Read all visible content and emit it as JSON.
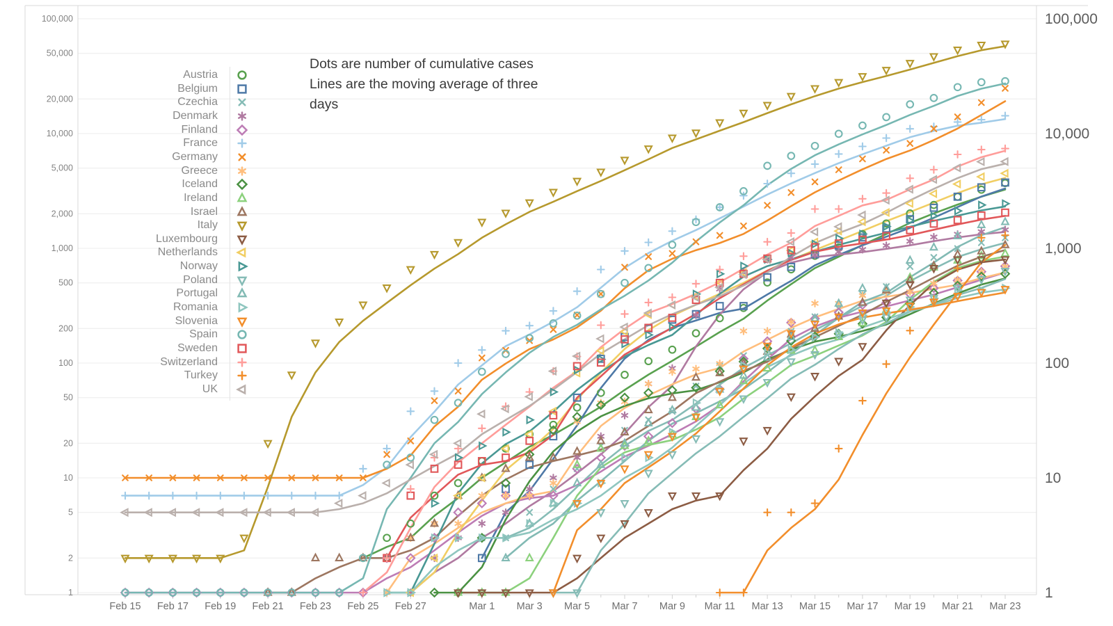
{
  "annotation": {
    "line1": "Dots are number of cumulative cases",
    "line2": "Lines are the moving average of three",
    "line3": "days"
  },
  "axes": {
    "left_tick_labels": [
      "100,000",
      "50,000",
      "20,000",
      "10,000",
      "5,000",
      "2,000",
      "1,000",
      "500",
      "200",
      "100",
      "50",
      "20",
      "10",
      "5",
      "2",
      "1"
    ],
    "left_tick_values": [
      100000,
      50000,
      20000,
      10000,
      5000,
      2000,
      1000,
      500,
      200,
      100,
      50,
      20,
      10,
      5,
      2,
      1
    ],
    "right_tick_labels": [
      "100,000",
      "10,000",
      "1,000",
      "100",
      "10",
      "1"
    ],
    "right_tick_values": [
      100000,
      10000,
      1000,
      100,
      10,
      1
    ],
    "x_tick_labels": [
      "Feb 15",
      "Feb 17",
      "Feb 19",
      "Feb 21",
      "Feb 23",
      "Feb 25",
      "Feb 27",
      "Mar 1",
      "Mar 3",
      "Mar 5",
      "Mar 7",
      "Mar 9",
      "Mar 11",
      "Mar 13",
      "Mar 15",
      "Mar 17",
      "Mar 19",
      "Mar 21",
      "Mar 23"
    ],
    "x_tick_day_indices": [
      0,
      2,
      4,
      6,
      8,
      10,
      12,
      15,
      17,
      19,
      21,
      23,
      25,
      27,
      29,
      31,
      33,
      35,
      37
    ],
    "y_scale": "log"
  },
  "colors": {
    "background": "#ffffff",
    "grid": "#ececec",
    "axis_line": "#d9d9d9",
    "tick_minor": "#cfcfcf",
    "label_left": "#848484",
    "label_bottom": "#6f6f6f",
    "label_right": "#5c5c5c",
    "legend_text": "#8a8a8a",
    "annotation_text": "#3a3a3a"
  },
  "chart_data": {
    "type": "scatter",
    "note_dots": "daily cumulative case counts",
    "note_lines": "3-day moving average of the dots",
    "ylim": [
      1,
      100000
    ],
    "legend_position": "upper-left inside plot",
    "grid": "on",
    "x": [
      "Feb 15",
      "Feb 16",
      "Feb 17",
      "Feb 18",
      "Feb 19",
      "Feb 20",
      "Feb 21",
      "Feb 22",
      "Feb 23",
      "Feb 24",
      "Feb 25",
      "Feb 26",
      "Feb 27",
      "Feb 28",
      "Feb 29",
      "Mar 1",
      "Mar 2",
      "Mar 3",
      "Mar 4",
      "Mar 5",
      "Mar 6",
      "Mar 7",
      "Mar 8",
      "Mar 9",
      "Mar 10",
      "Mar 11",
      "Mar 12",
      "Mar 13",
      "Mar 14",
      "Mar 15",
      "Mar 16",
      "Mar 17",
      "Mar 18",
      "Mar 19",
      "Mar 20",
      "Mar 21",
      "Mar 22",
      "Mar 23"
    ],
    "series": [
      {
        "name": "Austria",
        "marker": "circle",
        "color": "#59a14f",
        "values": [
          null,
          null,
          null,
          null,
          null,
          null,
          null,
          null,
          null,
          null,
          2,
          3,
          4,
          7,
          9,
          14,
          18,
          24,
          29,
          41,
          55,
          79,
          104,
          131,
          182,
          246,
          302,
          504,
          655,
          860,
          1018,
          1332,
          1646,
          2013,
          2388,
          2814,
          3244,
          3700
        ]
      },
      {
        "name": "Belgium",
        "marker": "square",
        "color": "#4e79a7",
        "values": [
          null,
          null,
          null,
          null,
          null,
          null,
          null,
          null,
          null,
          null,
          null,
          null,
          null,
          null,
          null,
          2,
          8,
          13,
          23,
          50,
          109,
          169,
          200,
          239,
          267,
          314,
          314,
          559,
          689,
          886,
          1058,
          1243,
          1486,
          1795,
          2257,
          2815,
          3401,
          3743
        ]
      },
      {
        "name": "Czechia",
        "marker": "x",
        "color": "#86bcb6",
        "values": [
          null,
          null,
          null,
          null,
          null,
          null,
          null,
          null,
          null,
          null,
          null,
          null,
          null,
          null,
          null,
          3,
          3,
          5,
          8,
          12,
          19,
          26,
          32,
          38,
          63,
          94,
          116,
          141,
          189,
          253,
          298,
          396,
          464,
          694,
          833,
          995,
          1120,
          1236
        ]
      },
      {
        "name": "Denmark",
        "marker": "asterisk",
        "color": "#b07aa1",
        "values": [
          null,
          null,
          null,
          null,
          null,
          null,
          null,
          null,
          null,
          null,
          null,
          null,
          1,
          2,
          3,
          4,
          5,
          8,
          10,
          15,
          23,
          35,
          66,
          90,
          262,
          442,
          615,
          801,
          836,
          875,
          932,
          977,
          1057,
          1151,
          1255,
          1326,
          1395,
          1450
        ]
      },
      {
        "name": "Finland",
        "marker": "diamond",
        "color": "#bd7cb5",
        "values": [
          1,
          1,
          1,
          1,
          1,
          1,
          1,
          1,
          1,
          1,
          1,
          2,
          2,
          3,
          5,
          6,
          7,
          7,
          7,
          12,
          15,
          19,
          23,
          30,
          40,
          59,
          109,
          155,
          225,
          244,
          277,
          321,
          336,
          400,
          450,
          523,
          626,
          700
        ]
      },
      {
        "name": "France",
        "marker": "plus",
        "color": "#a0cbe8",
        "values": [
          7,
          7,
          7,
          7,
          7,
          7,
          7,
          7,
          7,
          7,
          12,
          18,
          38,
          57,
          100,
          130,
          191,
          212,
          285,
          423,
          653,
          949,
          1126,
          1412,
          1784,
          2281,
          2876,
          3661,
          4499,
          5423,
          6633,
          7730,
          9134,
          10995,
          11500,
          12600,
          13200,
          14300
        ]
      },
      {
        "name": "Germany",
        "marker": "x",
        "color": "#f28e2b",
        "values": [
          10,
          10,
          10,
          10,
          10,
          10,
          10,
          10,
          10,
          10,
          10,
          16,
          21,
          47,
          57,
          111,
          129,
          157,
          196,
          262,
          400,
          684,
          847,
          902,
          1139,
          1296,
          1567,
          2369,
          3062,
          3795,
          4838,
          6012,
          7156,
          8198,
          10999,
          13957,
          18610,
          24800
        ]
      },
      {
        "name": "Greece",
        "marker": "asterisk",
        "color": "#ffbe7d",
        "values": [
          null,
          null,
          null,
          null,
          null,
          null,
          null,
          null,
          null,
          null,
          null,
          1,
          3,
          4,
          4,
          7,
          7,
          7,
          9,
          31,
          45,
          46,
          66,
          84,
          89,
          99,
          190,
          190,
          228,
          331,
          331,
          387,
          418,
          418,
          495,
          530,
          624,
          695
        ]
      },
      {
        "name": "Iceland",
        "marker": "diamond",
        "color": "#4a9142",
        "values": [
          null,
          null,
          null,
          null,
          null,
          null,
          null,
          null,
          null,
          null,
          null,
          null,
          null,
          1,
          1,
          3,
          9,
          16,
          26,
          34,
          43,
          50,
          55,
          58,
          61,
          85,
          103,
          134,
          156,
          171,
          180,
          220,
          250,
          330,
          409,
          473,
          568,
          600
        ]
      },
      {
        "name": "Ireland",
        "marker": "tri-up",
        "color": "#8cd17d",
        "values": [
          null,
          null,
          null,
          null,
          null,
          null,
          null,
          null,
          null,
          null,
          null,
          null,
          null,
          null,
          1,
          1,
          1,
          2,
          6,
          13,
          18,
          19,
          21,
          24,
          34,
          43,
          70,
          90,
          129,
          129,
          169,
          223,
          292,
          557,
          683,
          785,
          860,
          900
        ]
      },
      {
        "name": "Israel",
        "marker": "tri-up",
        "color": "#9d7660",
        "values": [
          null,
          null,
          null,
          null,
          null,
          null,
          1,
          1,
          2,
          2,
          2,
          2,
          3,
          4,
          7,
          10,
          12,
          15,
          15,
          17,
          21,
          25,
          39,
          50,
          75,
          82,
          100,
          126,
          178,
          200,
          255,
          337,
          433,
          529,
          705,
          883,
          945,
          1071
        ]
      },
      {
        "name": "Italy",
        "marker": "tri-down",
        "color": "#b6992d",
        "values": [
          2,
          2,
          2,
          2,
          2,
          3,
          20,
          79,
          150,
          229,
          322,
          453,
          655,
          888,
          1128,
          1694,
          2036,
          2502,
          3089,
          3858,
          4636,
          5883,
          7375,
          9172,
          10149,
          12462,
          15113,
          17660,
          21157,
          24747,
          27980,
          31506,
          35713,
          41035,
          47021,
          53578,
          59138,
          60500
        ]
      },
      {
        "name": "Luxembourg",
        "marker": "tri-down",
        "color": "#8c5c44",
        "values": [
          null,
          null,
          null,
          null,
          null,
          null,
          null,
          null,
          null,
          null,
          null,
          null,
          null,
          null,
          1,
          1,
          1,
          1,
          1,
          2,
          3,
          4,
          5,
          7,
          7,
          7,
          21,
          26,
          51,
          77,
          104,
          140,
          335,
          484,
          670,
          798,
          798,
          800
        ]
      },
      {
        "name": "Netherlands",
        "marker": "tri-left",
        "color": "#f1ce63",
        "values": [
          null,
          null,
          null,
          null,
          null,
          null,
          null,
          null,
          null,
          null,
          null,
          null,
          1,
          2,
          7,
          10,
          18,
          24,
          38,
          82,
          128,
          188,
          265,
          321,
          382,
          503,
          614,
          804,
          959,
          1135,
          1413,
          1705,
          2051,
          2460,
          2994,
          3631,
          4204,
          4500
        ]
      },
      {
        "name": "Norway",
        "marker": "tri-right",
        "color": "#499894",
        "values": [
          null,
          null,
          null,
          null,
          null,
          null,
          null,
          null,
          null,
          null,
          null,
          1,
          1,
          6,
          15,
          19,
          25,
          32,
          56,
          87,
          108,
          147,
          176,
          205,
          400,
          598,
          702,
          800,
          907,
          1090,
          1221,
          1333,
          1550,
          1742,
          1914,
          2118,
          2385,
          2450
        ]
      },
      {
        "name": "Poland",
        "marker": "tri-down",
        "color": "#86bcb6",
        "values": [
          null,
          null,
          null,
          null,
          null,
          null,
          null,
          null,
          null,
          null,
          null,
          null,
          null,
          null,
          null,
          null,
          null,
          null,
          1,
          1,
          5,
          6,
          11,
          16,
          22,
          31,
          49,
          68,
          103,
          119,
          177,
          238,
          251,
          355,
          367,
          452,
          536,
          634
        ]
      },
      {
        "name": "Portugal",
        "marker": "tri-up",
        "color": "#82bab4",
        "values": [
          null,
          null,
          null,
          null,
          null,
          null,
          null,
          null,
          null,
          null,
          null,
          null,
          null,
          null,
          null,
          null,
          2,
          4,
          6,
          9,
          13,
          20,
          30,
          39,
          41,
          59,
          78,
          112,
          169,
          245,
          331,
          448,
          448,
          785,
          1020,
          1280,
          1600,
          1700
        ]
      },
      {
        "name": "Romania",
        "marker": "tri-right",
        "color": "#8fc6bf",
        "values": [
          null,
          null,
          null,
          null,
          null,
          null,
          null,
          null,
          null,
          null,
          null,
          1,
          1,
          3,
          3,
          3,
          3,
          4,
          6,
          6,
          9,
          15,
          15,
          25,
          45,
          59,
          95,
          123,
          131,
          168,
          184,
          261,
          277,
          308,
          367,
          433,
          433,
          450
        ]
      },
      {
        "name": "Slovenia",
        "marker": "tri-down",
        "color": "#f28e2b",
        "values": [
          null,
          null,
          null,
          null,
          null,
          null,
          null,
          null,
          null,
          null,
          null,
          null,
          null,
          null,
          null,
          null,
          null,
          null,
          1,
          6,
          9,
          12,
          16,
          23,
          34,
          57,
          89,
          141,
          181,
          219,
          253,
          275,
          286,
          315,
          341,
          383,
          414,
          440
        ]
      },
      {
        "name": "Spain",
        "marker": "circle",
        "color": "#76b7b2",
        "values": [
          1,
          1,
          1,
          1,
          1,
          1,
          1,
          1,
          1,
          1,
          2,
          13,
          15,
          32,
          45,
          84,
          120,
          165,
          222,
          259,
          400,
          500,
          673,
          1073,
          1695,
          2277,
          3146,
          5232,
          6391,
          7798,
          9942,
          11748,
          13910,
          17963,
          20410,
          25374,
          28000,
          28600
        ]
      },
      {
        "name": "Sweden",
        "marker": "square",
        "color": "#e15759",
        "values": [
          null,
          null,
          null,
          null,
          null,
          null,
          null,
          null,
          null,
          null,
          null,
          2,
          7,
          12,
          13,
          14,
          15,
          21,
          35,
          94,
          101,
          161,
          203,
          248,
          355,
          500,
          599,
          814,
          961,
          1022,
          1103,
          1190,
          1279,
          1439,
          1639,
          1763,
          1934,
          2050
        ]
      },
      {
        "name": "Switzerland",
        "marker": "plus",
        "color": "#ff9d9a",
        "values": [
          null,
          null,
          null,
          null,
          null,
          null,
          null,
          null,
          null,
          null,
          1,
          2,
          8,
          15,
          18,
          27,
          42,
          56,
          85,
          114,
          214,
          268,
          337,
          374,
          491,
          652,
          854,
          1139,
          1359,
          2200,
          2200,
          2700,
          3028,
          4075,
          4840,
          6575,
          7245,
          7400
        ]
      },
      {
        "name": "Turkey",
        "marker": "plus",
        "color": "#f28e2b",
        "values": [
          null,
          null,
          null,
          null,
          null,
          null,
          null,
          null,
          null,
          null,
          null,
          null,
          null,
          null,
          null,
          null,
          null,
          null,
          null,
          null,
          null,
          null,
          null,
          null,
          null,
          1,
          1,
          5,
          5,
          6,
          18,
          47,
          98,
          192,
          359,
          670,
          1236,
          1300
        ]
      },
      {
        "name": "UK",
        "marker": "tri-left",
        "color": "#bab0ac",
        "values": [
          5,
          5,
          5,
          5,
          5,
          5,
          5,
          5,
          5,
          6,
          7,
          9,
          13,
          16,
          20,
          36,
          40,
          51,
          85,
          115,
          163,
          206,
          273,
          321,
          373,
          456,
          590,
          798,
          1140,
          1391,
          1543,
          1950,
          2626,
          3269,
          3983,
          5018,
          5683,
          5700
        ]
      }
    ]
  }
}
